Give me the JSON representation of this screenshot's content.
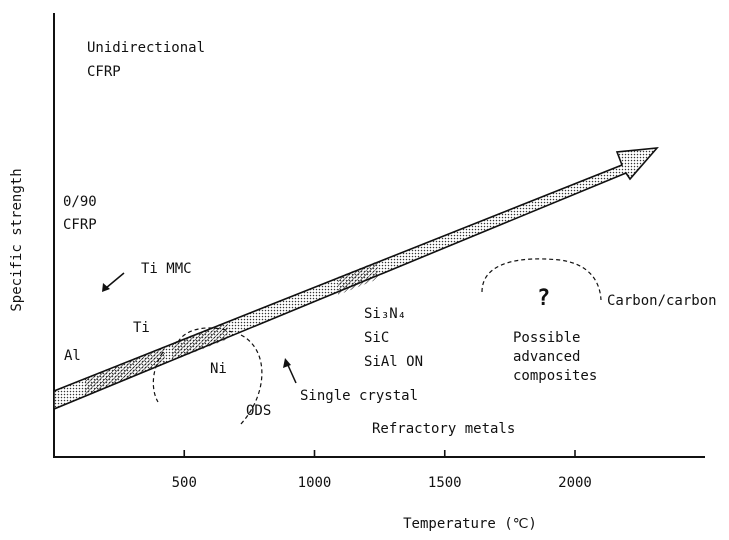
{
  "chart_data": {
    "type": "diagram",
    "title": "",
    "xlabel": "Temperature (℃)",
    "ylabel": "Specific strength",
    "x_ticks": [
      500,
      1000,
      1500,
      2000
    ],
    "xlim": [
      0,
      2450
    ],
    "grid": false,
    "trend_arrow": {
      "from_x": 0,
      "to_x": 2350,
      "description_style": "dotted shaded band arrow"
    },
    "labels": [
      {
        "id": "unidirectional-cfrp",
        "lines": [
          "Unidirectional",
          "CFRP"
        ]
      },
      {
        "id": "cfrp-0-90",
        "lines": [
          "0/90",
          "CFRP"
        ]
      },
      {
        "id": "ti-mmc",
        "lines": [
          "Ti MMC"
        ]
      },
      {
        "id": "al",
        "lines": [
          "Al"
        ]
      },
      {
        "id": "ti",
        "lines": [
          "Ti"
        ]
      },
      {
        "id": "ni",
        "lines": [
          "Ni"
        ]
      },
      {
        "id": "ods",
        "lines": [
          "ODS"
        ]
      },
      {
        "id": "single-crystal",
        "lines": [
          "Single crystal"
        ]
      },
      {
        "id": "ceramics",
        "lines": [
          "Si₃N₄",
          "SiC",
          "SiAl ON"
        ]
      },
      {
        "id": "refractory-metals",
        "lines": [
          "Refractory metals"
        ]
      },
      {
        "id": "question-mark",
        "lines": [
          "?"
        ]
      },
      {
        "id": "possible-advanced-composites",
        "lines": [
          "Possible",
          "advanced",
          "composites"
        ]
      },
      {
        "id": "carbon-carbon",
        "lines": [
          "Carbon/carbon"
        ]
      }
    ]
  }
}
